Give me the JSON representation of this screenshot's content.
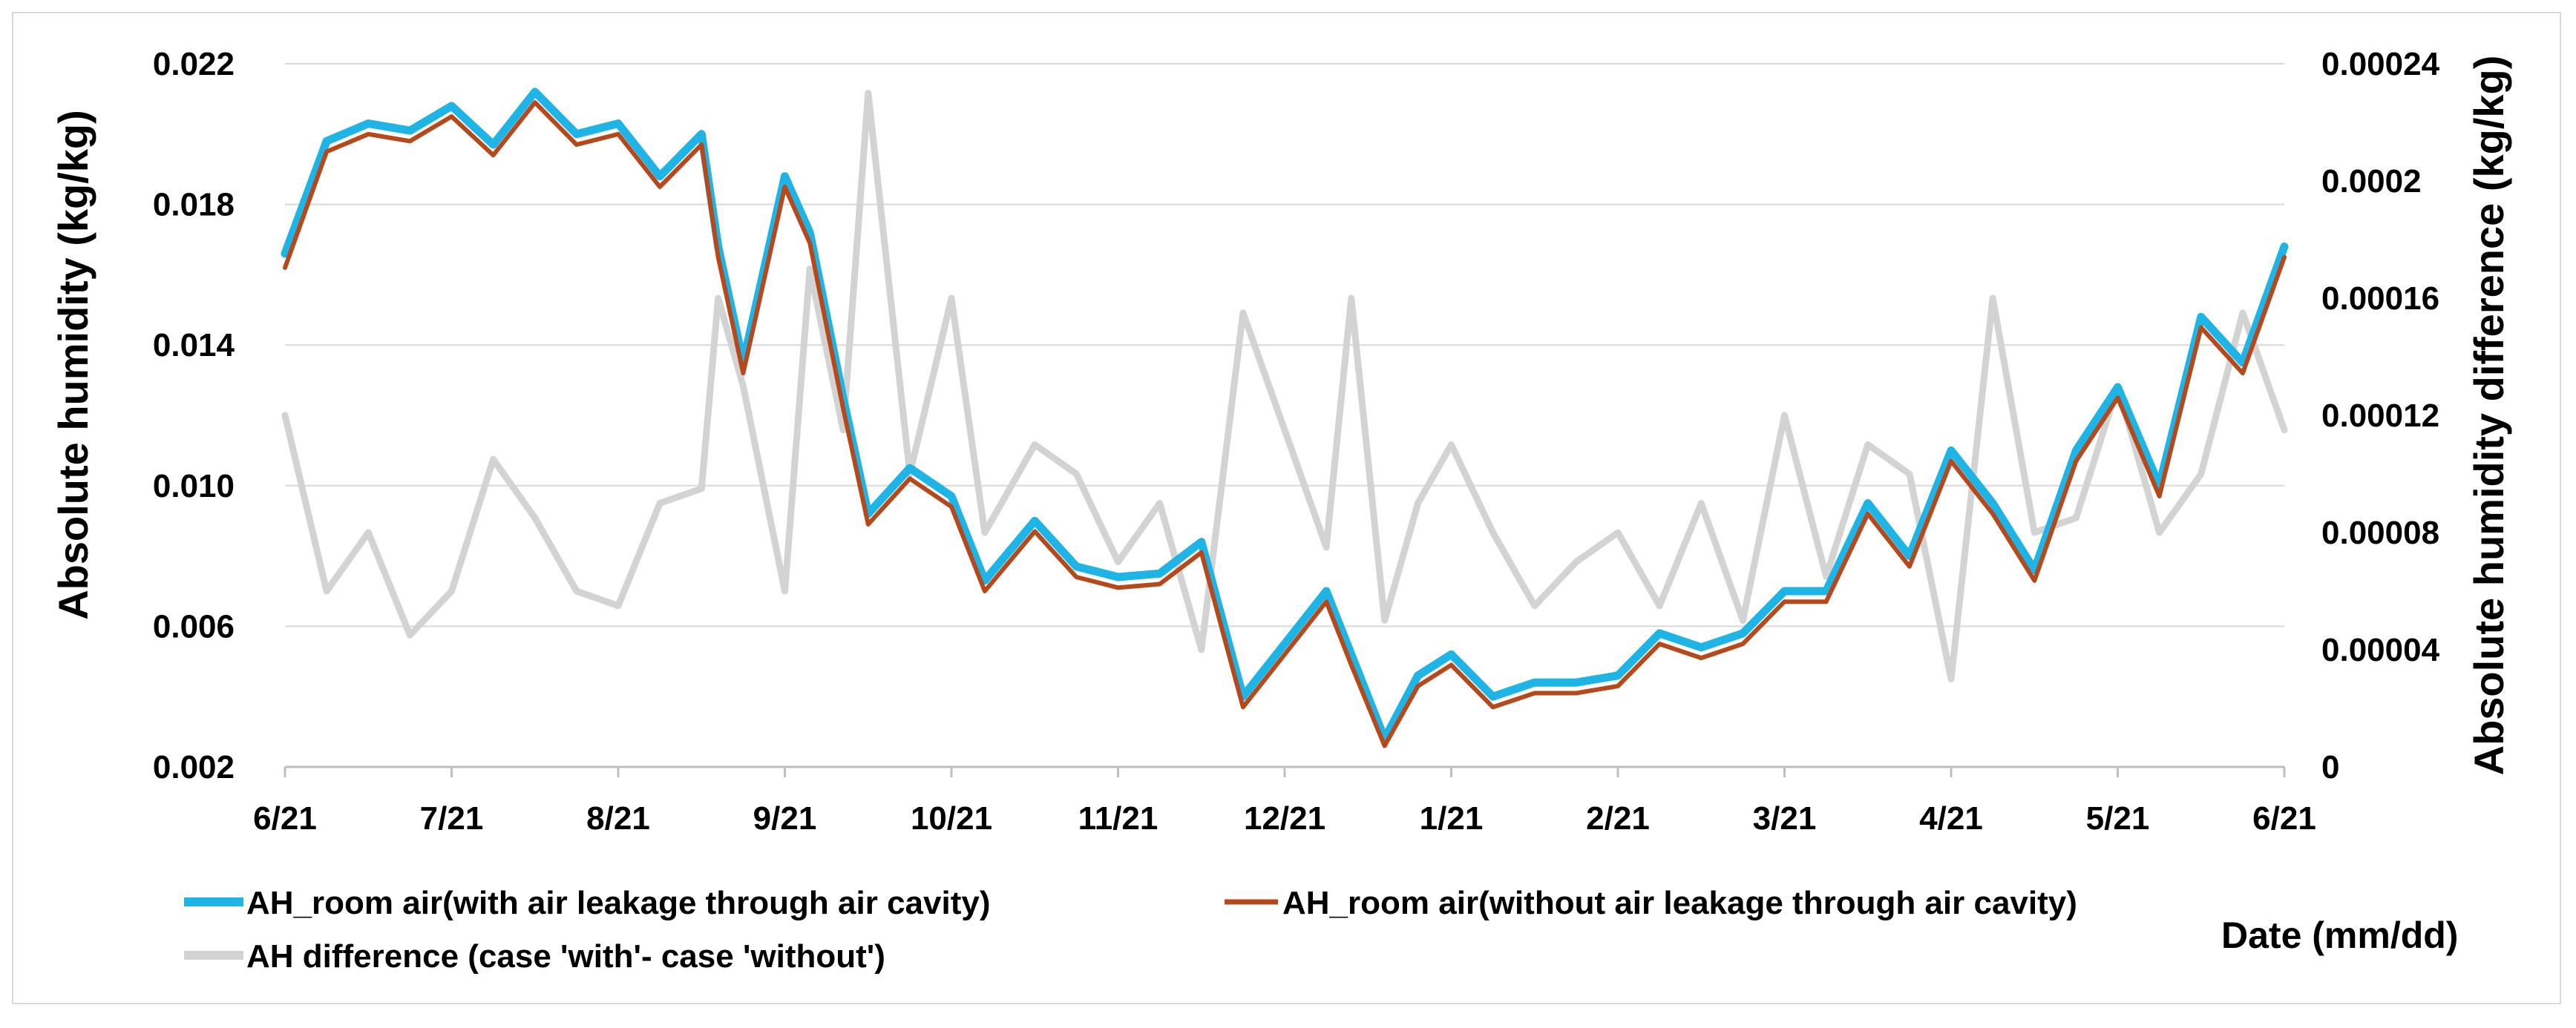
{
  "chart_data": {
    "type": "line",
    "title": "",
    "xlabel": "Date (mm/dd)",
    "ylabel_left": "Absolute humidity (kg/kg)",
    "ylabel_right": "Absolute humidity difference (kg/kg)",
    "ylim_left": [
      0.002,
      0.022
    ],
    "ylim_right": [
      0,
      0.00024
    ],
    "left_ticks": [
      "0.022",
      "0.018",
      "0.014",
      "0.010",
      "0.006",
      "0.002"
    ],
    "left_tick_values": [
      0.022,
      0.018,
      0.014,
      0.01,
      0.006,
      0.002
    ],
    "right_ticks": [
      "0.00024",
      "0.0002",
      "0.00016",
      "0.00012",
      "0.00008",
      "0.00004",
      "0"
    ],
    "right_tick_values": [
      0.00024,
      0.0002,
      0.00016,
      0.00012,
      8e-05,
      4e-05,
      0
    ],
    "x_ticks": [
      "6/21",
      "7/21",
      "8/21",
      "9/21",
      "10/21",
      "11/21",
      "12/21",
      "1/21",
      "2/21",
      "3/21",
      "4/21",
      "5/21",
      "6/21"
    ],
    "x_range": [
      0,
      12
    ],
    "grid": true,
    "legend_position": "bottom",
    "x": [
      0,
      0.25,
      0.5,
      0.75,
      1.0,
      1.25,
      1.5,
      1.75,
      2.0,
      2.25,
      2.5,
      2.6,
      2.75,
      3.0,
      3.15,
      3.35,
      3.5,
      3.75,
      4.0,
      4.2,
      4.5,
      4.75,
      5.0,
      5.25,
      5.5,
      5.75,
      6.0,
      6.25,
      6.4,
      6.6,
      6.8,
      7.0,
      7.25,
      7.5,
      7.75,
      8.0,
      8.25,
      8.5,
      8.75,
      9.0,
      9.25,
      9.5,
      9.75,
      10.0,
      10.25,
      10.5,
      10.75,
      11.0,
      11.25,
      11.5,
      11.75,
      12.0
    ],
    "series": [
      {
        "name": "AH_room air(with air leakage through air cavity)",
        "axis": "left",
        "color": "#1eb4e6",
        "values": [
          0.0166,
          0.0198,
          0.0203,
          0.0201,
          0.0208,
          0.0197,
          0.0212,
          0.02,
          0.0203,
          0.0188,
          0.02,
          0.0168,
          0.0135,
          0.0188,
          0.0172,
          0.0125,
          0.0092,
          0.0105,
          0.0097,
          0.0073,
          0.009,
          0.0077,
          0.0074,
          0.0075,
          0.0084,
          0.004,
          0.0055,
          0.007,
          0.0052,
          0.0028,
          0.0046,
          0.0052,
          0.004,
          0.0044,
          0.0044,
          0.0046,
          0.0058,
          0.0054,
          0.0058,
          0.007,
          0.007,
          0.0095,
          0.008,
          0.011,
          0.0095,
          0.0076,
          0.011,
          0.0128,
          0.01,
          0.0148,
          0.0135,
          0.0168
        ]
      },
      {
        "name": "AH_room air(without air leakage through air cavity)",
        "axis": "left",
        "color": "#b5491c",
        "values": [
          0.0162,
          0.0195,
          0.02,
          0.0198,
          0.0205,
          0.0194,
          0.0209,
          0.0197,
          0.02,
          0.0185,
          0.0197,
          0.0165,
          0.0132,
          0.0185,
          0.0169,
          0.0122,
          0.0089,
          0.0102,
          0.0094,
          0.007,
          0.0087,
          0.0074,
          0.0071,
          0.0072,
          0.0081,
          0.0037,
          0.0052,
          0.0067,
          0.0049,
          0.0026,
          0.0043,
          0.0049,
          0.0037,
          0.0041,
          0.0041,
          0.0043,
          0.0055,
          0.0051,
          0.0055,
          0.0067,
          0.0067,
          0.0092,
          0.0077,
          0.0107,
          0.0092,
          0.0073,
          0.0107,
          0.0125,
          0.0097,
          0.0145,
          0.0132,
          0.0165
        ]
      },
      {
        "name": "AH difference (case 'with'- case 'without')",
        "axis": "right",
        "color": "#d3d3d3",
        "values": [
          0.00012,
          6e-05,
          8e-05,
          4.5e-05,
          6e-05,
          0.000105,
          8.5e-05,
          6e-05,
          5.5e-05,
          9e-05,
          9.5e-05,
          0.00016,
          0.00013,
          6e-05,
          0.00017,
          0.000115,
          0.00023,
          0.0001,
          0.00016,
          8e-05,
          0.00011,
          0.0001,
          7e-05,
          9e-05,
          4e-05,
          0.000155,
          0.000115,
          7.5e-05,
          0.00016,
          5e-05,
          9e-05,
          0.00011,
          8e-05,
          5.5e-05,
          7e-05,
          8e-05,
          5.5e-05,
          9e-05,
          5e-05,
          0.00012,
          6.5e-05,
          0.00011,
          0.0001,
          3e-05,
          0.00016,
          8e-05,
          8.5e-05,
          0.00013,
          8e-05,
          0.0001,
          0.000155,
          0.000115
        ]
      }
    ]
  }
}
